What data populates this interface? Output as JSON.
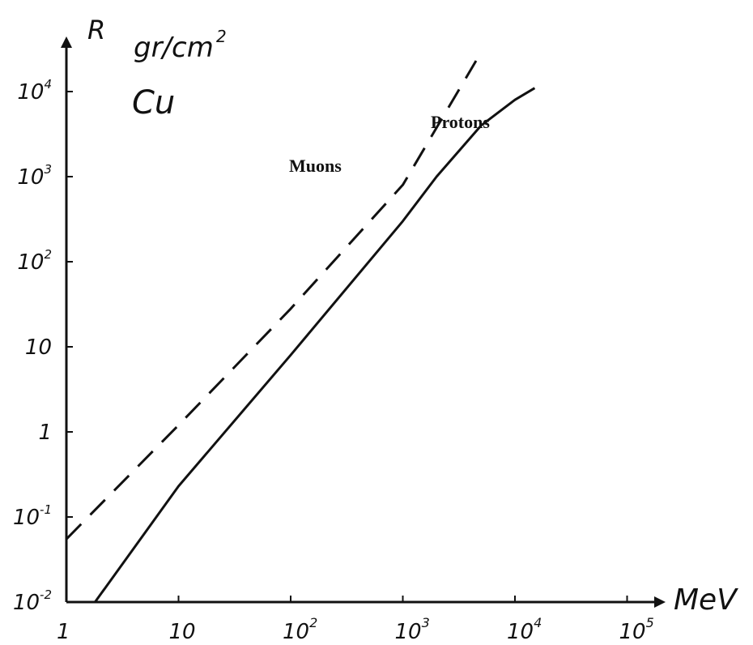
{
  "chart_data": {
    "type": "line",
    "title": "",
    "xlabel": "MeV",
    "ylabel": "R",
    "ylabel_unit": {
      "base": "gr/cm",
      "exp": "2"
    },
    "material": "Cu",
    "xscale": "log",
    "yscale": "log",
    "xlim": [
      1,
      100000
    ],
    "ylim": [
      0.01,
      10000
    ],
    "x_ticks": [
      {
        "value": 1,
        "base": "1",
        "exp": ""
      },
      {
        "value": 10,
        "base": "10",
        "exp": ""
      },
      {
        "value": 100,
        "base": "10",
        "exp": "2"
      },
      {
        "value": 1000,
        "base": "10",
        "exp": "3"
      },
      {
        "value": 10000,
        "base": "10",
        "exp": "4"
      },
      {
        "value": 100000,
        "base": "10",
        "exp": "5"
      }
    ],
    "y_ticks": [
      {
        "value": 0.01,
        "base": "10",
        "exp": "-2"
      },
      {
        "value": 0.1,
        "base": "10",
        "exp": "-1"
      },
      {
        "value": 1,
        "base": "1",
        "exp": ""
      },
      {
        "value": 10,
        "base": "10",
        "exp": ""
      },
      {
        "value": 100,
        "base": "10",
        "exp": "2"
      },
      {
        "value": 1000,
        "base": "10",
        "exp": "3"
      },
      {
        "value": 10000,
        "base": "10",
        "exp": "4"
      }
    ],
    "grid": false,
    "legend": "none",
    "series": [
      {
        "name": "Muons",
        "style": "dashed",
        "points": [
          [
            1,
            0.055
          ],
          [
            10,
            1.2
          ],
          [
            100,
            28
          ],
          [
            1000,
            800
          ],
          [
            4500,
            23000
          ]
        ]
      },
      {
        "name": "Protons",
        "style": "solid",
        "points": [
          [
            1.8,
            0.01
          ],
          [
            10,
            0.23
          ],
          [
            100,
            8
          ],
          [
            1000,
            300
          ],
          [
            2000,
            1000
          ],
          [
            5000,
            4000
          ],
          [
            10000,
            8000
          ],
          [
            15000,
            11000
          ]
        ]
      }
    ]
  }
}
